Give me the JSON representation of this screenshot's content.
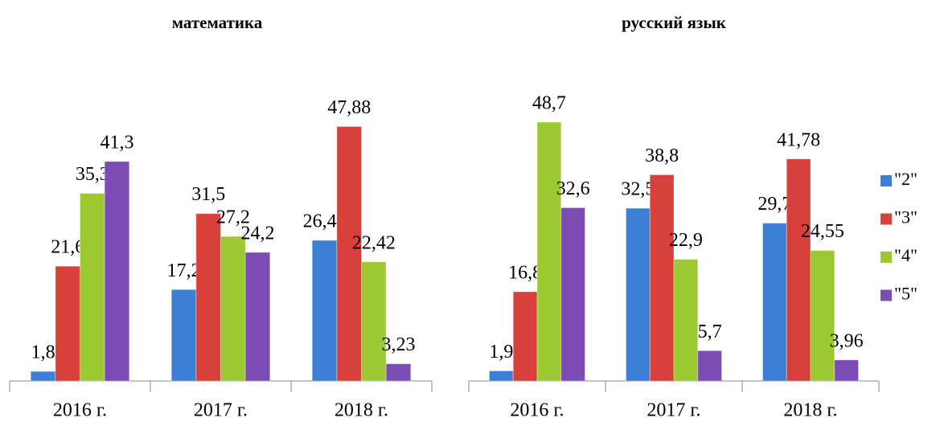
{
  "chart_data": [
    {
      "type": "bar",
      "title": "математика",
      "categories": [
        "2016 г.",
        "2017 г.",
        "2018 г."
      ],
      "series": [
        {
          "name": "\"2\"",
          "color": "#3b7fd6",
          "values": [
            1.8,
            17.2,
            26.46
          ],
          "value_labels": [
            "1,8",
            "17,2",
            "26,46"
          ]
        },
        {
          "name": "\"3\"",
          "color": "#d8403b",
          "values": [
            21.6,
            31.5,
            47.88
          ],
          "value_labels": [
            "21,6",
            "31,5",
            "47,88"
          ]
        },
        {
          "name": "\"4\"",
          "color": "#9cc931",
          "values": [
            35.3,
            27.2,
            22.42
          ],
          "value_labels": [
            "35,3",
            "27,2",
            "22,42"
          ]
        },
        {
          "name": "\"5\"",
          "color": "#7b4cb3",
          "values": [
            41.3,
            24.2,
            3.23
          ],
          "value_labels": [
            "41,3",
            "24,2",
            "3,23"
          ]
        }
      ]
    },
    {
      "type": "bar",
      "title": "русский язык",
      "categories": [
        "2016 г.",
        "2017 г.",
        "2018 г."
      ],
      "series": [
        {
          "name": "\"2\"",
          "color": "#3b7fd6",
          "values": [
            1.9,
            32.5,
            29.7
          ],
          "value_labels": [
            "1,9",
            "32,5",
            "29,7"
          ]
        },
        {
          "name": "\"3\"",
          "color": "#d8403b",
          "values": [
            16.8,
            38.8,
            41.78
          ],
          "value_labels": [
            "16,8",
            "38,8",
            "41,78"
          ]
        },
        {
          "name": "\"4\"",
          "color": "#9cc931",
          "values": [
            48.7,
            22.9,
            24.55
          ],
          "value_labels": [
            "48,7",
            "22,9",
            "24,55"
          ]
        },
        {
          "name": "\"5\"",
          "color": "#7b4cb3",
          "values": [
            32.6,
            5.7,
            3.96
          ],
          "value_labels": [
            "32,6",
            "5,7",
            "3,96"
          ]
        }
      ],
      "legend": "right"
    }
  ]
}
